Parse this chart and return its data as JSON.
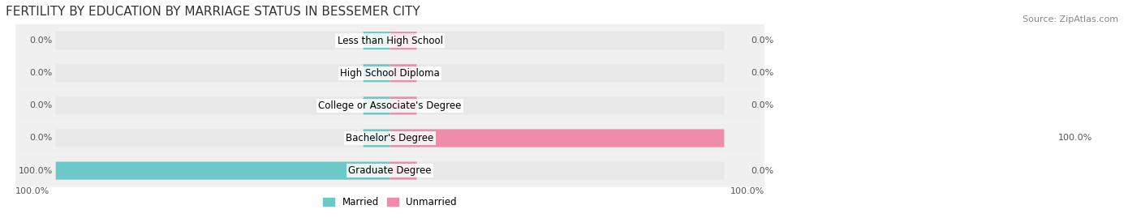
{
  "title": "FERTILITY BY EDUCATION BY MARRIAGE STATUS IN BESSEMER CITY",
  "source": "Source: ZipAtlas.com",
  "categories": [
    "Less than High School",
    "High School Diploma",
    "College or Associate's Degree",
    "Bachelor's Degree",
    "Graduate Degree"
  ],
  "married": [
    0.0,
    0.0,
    0.0,
    0.0,
    100.0
  ],
  "unmarried": [
    0.0,
    0.0,
    0.0,
    100.0,
    0.0
  ],
  "married_color": "#6dc8c8",
  "unmarried_color": "#f08caa",
  "bar_bg_color": "#e8e8e8",
  "row_bg_color": "#f0f0f0",
  "max_val": 100.0,
  "legend_married": "Married",
  "legend_unmarried": "Unmarried",
  "axis_label_left": "100.0%",
  "axis_label_right": "100.0%",
  "title_fontsize": 11,
  "source_fontsize": 8,
  "label_fontsize": 8,
  "category_fontsize": 8.5
}
